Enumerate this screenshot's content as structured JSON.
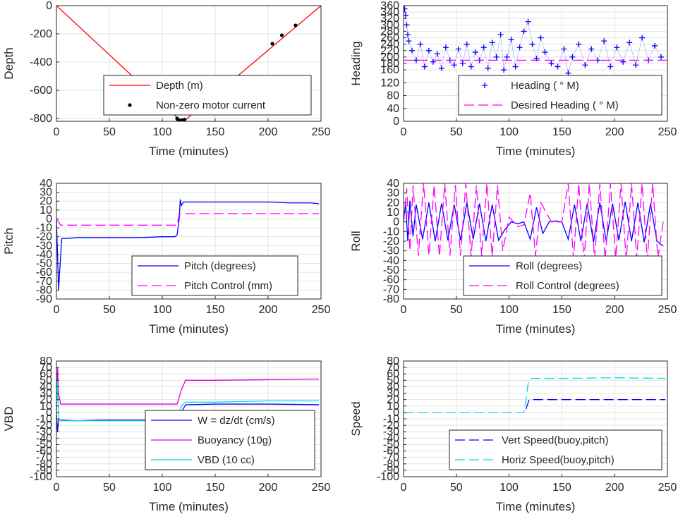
{
  "chart_data": [
    {
      "id": "depth",
      "type": "line",
      "xlabel": "Time (minutes)",
      "ylabel": "Depth",
      "xlim": [
        0,
        250
      ],
      "ylim": [
        -820,
        0
      ],
      "xticks": [
        0,
        50,
        100,
        150,
        200,
        250
      ],
      "yticks": [
        0,
        -200,
        -400,
        -600,
        -800
      ],
      "grid": true,
      "legend": {
        "position": "bottom-center"
      },
      "series": [
        {
          "name": "Depth (m)",
          "color": "#ff0000",
          "style": "solid",
          "x": [
            0,
            117,
            122,
            250
          ],
          "y": [
            0,
            -815,
            -810,
            0
          ]
        },
        {
          "name": "Non-zero motor current",
          "color": "#000000",
          "style": "dots",
          "x": [
            114,
            115,
            116,
            117,
            118,
            119,
            120,
            121,
            204,
            213,
            226
          ],
          "y": [
            -800,
            -810,
            -815,
            -815,
            -815,
            -812,
            -812,
            -808,
            -270,
            -210,
            -140
          ]
        }
      ]
    },
    {
      "id": "heading",
      "type": "scatter",
      "xlabel": "Time (minutes)",
      "ylabel": "Heading",
      "xlim": [
        0,
        250
      ],
      "ylim": [
        0,
        360
      ],
      "xticks": [
        0,
        50,
        100,
        150,
        200,
        250
      ],
      "yticks": [
        0,
        40,
        80,
        120,
        160,
        180,
        200,
        220,
        240,
        260,
        280,
        300,
        320,
        340,
        360
      ],
      "grid": true,
      "legend": {
        "position": "bottom-right"
      },
      "series": [
        {
          "name": "Heading (  ° M)",
          "color": "#0000ff",
          "style": "plus",
          "x": [
            1,
            2,
            3,
            4,
            5,
            8,
            12,
            16,
            20,
            24,
            28,
            32,
            36,
            40,
            44,
            48,
            52,
            56,
            60,
            64,
            68,
            72,
            76,
            80,
            84,
            88,
            92,
            95,
            98,
            102,
            106,
            110,
            114,
            118,
            122,
            126,
            130,
            134,
            140,
            146,
            152,
            156,
            160,
            166,
            172,
            178,
            184,
            190,
            196,
            202,
            208,
            214,
            220,
            226,
            232,
            238,
            244
          ],
          "y": [
            350,
            330,
            300,
            270,
            250,
            220,
            190,
            240,
            170,
            220,
            185,
            210,
            165,
            230,
            190,
            175,
            225,
            180,
            240,
            170,
            215,
            190,
            230,
            165,
            245,
            200,
            270,
            160,
            200,
            255,
            170,
            230,
            280,
            310,
            240,
            195,
            260,
            215,
            180,
            170,
            225,
            150,
            200,
            240,
            175,
            225,
            190,
            250,
            170,
            230,
            185,
            245,
            175,
            260,
            190,
            235,
            200
          ]
        },
        {
          "name": "Desired Heading (    ° M)",
          "color": "#ff00ff",
          "style": "dashed",
          "x": [
            0,
            250
          ],
          "y": [
            190,
            190
          ]
        }
      ]
    },
    {
      "id": "pitch",
      "type": "line",
      "xlabel": "Time (minutes)",
      "ylabel": "Pitch",
      "xlim": [
        0,
        250
      ],
      "ylim": [
        -90,
        40
      ],
      "xticks": [
        0,
        50,
        100,
        150,
        200,
        250
      ],
      "yticks": [
        40,
        30,
        20,
        10,
        0,
        -10,
        -20,
        -30,
        -40,
        -50,
        -60,
        -70,
        -80,
        -90
      ],
      "grid": true,
      "legend": {
        "position": "bottom-right"
      },
      "series": [
        {
          "name": "Pitch (degrees)",
          "color": "#0000ff",
          "style": "solid",
          "x": [
            0,
            1,
            2,
            3,
            5,
            10,
            20,
            40,
            60,
            80,
            100,
            112,
            114,
            116,
            117,
            118,
            120,
            140,
            160,
            180,
            200,
            220,
            240,
            248
          ],
          "y": [
            0,
            -40,
            -80,
            -60,
            -22,
            -22,
            -21,
            -21,
            -21,
            -21,
            -20,
            -20,
            -18,
            0,
            22,
            15,
            19,
            19,
            19,
            19,
            19,
            18,
            18,
            17
          ]
        },
        {
          "name": "Pitch Control (mm)",
          "color": "#ff00ff",
          "style": "dashed",
          "x": [
            0,
            4,
            10,
            114,
            116,
            120,
            248
          ],
          "y": [
            0,
            -7,
            -7,
            -7,
            5,
            6,
            6
          ]
        }
      ]
    },
    {
      "id": "roll",
      "type": "line",
      "xlabel": "Time (minutes)",
      "ylabel": "Roll",
      "xlim": [
        0,
        250
      ],
      "ylim": [
        -80,
        40
      ],
      "xticks": [
        0,
        50,
        100,
        150,
        200,
        250
      ],
      "yticks": [
        40,
        30,
        20,
        10,
        0,
        -10,
        -20,
        -30,
        -40,
        -50,
        -60,
        -70,
        -80
      ],
      "grid": true,
      "legend": {
        "position": "bottom-right"
      },
      "series": [
        {
          "name": "Roll (degrees)",
          "color": "#0000ff",
          "style": "solid",
          "x": [
            0,
            2,
            4,
            6,
            9,
            12,
            18,
            24,
            30,
            36,
            42,
            48,
            54,
            60,
            66,
            72,
            78,
            84,
            90,
            96,
            102,
            108,
            114,
            120,
            126,
            132,
            138,
            144,
            150,
            156,
            162,
            168,
            174,
            180,
            186,
            192,
            198,
            204,
            210,
            216,
            222,
            228,
            234,
            240,
            246
          ],
          "y": [
            0,
            20,
            -20,
            22,
            -15,
            18,
            -18,
            20,
            -20,
            19,
            -19,
            18,
            -19,
            20,
            -18,
            19,
            -20,
            18,
            -19,
            -8,
            0,
            -2,
            0,
            -18,
            15,
            -12,
            0,
            1,
            0,
            -18,
            18,
            -20,
            19,
            -21,
            20,
            -20,
            19,
            -19,
            21,
            -20,
            20,
            -21,
            19,
            -20,
            -25
          ]
        },
        {
          "name": "Roll Control (degrees)",
          "color": "#ff00ff",
          "style": "dashed",
          "x": [
            0,
            3,
            6,
            9,
            14,
            19,
            24,
            29,
            34,
            39,
            44,
            49,
            54,
            59,
            64,
            69,
            74,
            79,
            84,
            89,
            94,
            100,
            108,
            114,
            120,
            125,
            130,
            140,
            150,
            156,
            161,
            166,
            171,
            176,
            181,
            186,
            191,
            196,
            201,
            206,
            211,
            216,
            221,
            226,
            231,
            236,
            241,
            246
          ],
          "y": [
            0,
            35,
            -30,
            38,
            -35,
            40,
            -35,
            38,
            -36,
            40,
            -35,
            38,
            -35,
            40,
            -36,
            38,
            -35,
            40,
            -36,
            38,
            -30,
            5,
            -5,
            -3,
            30,
            -35,
            20,
            0,
            0,
            40,
            -38,
            40,
            -40,
            40,
            -38,
            40,
            -40,
            40,
            -38,
            40,
            -40,
            40,
            -38,
            40,
            -40,
            40,
            -38,
            0
          ]
        }
      ]
    },
    {
      "id": "vbd",
      "type": "line",
      "xlabel": "Time (minutes)",
      "ylabel": "VBD",
      "xlim": [
        0,
        250
      ],
      "ylim": [
        -100,
        80
      ],
      "xticks": [
        0,
        50,
        100,
        150,
        200,
        250
      ],
      "yticks": [
        80,
        70,
        60,
        50,
        40,
        30,
        20,
        10,
        0,
        -10,
        -20,
        -30,
        -40,
        -50,
        -60,
        -70,
        -80,
        -90,
        -100
      ],
      "grid": true,
      "legend": {
        "position": "bottom-right"
      },
      "series": [
        {
          "name": "W = dz/dt (cm/s)",
          "color": "#0000ff",
          "style": "solid",
          "x": [
            0,
            1,
            2,
            3,
            5,
            20,
            40,
            60,
            80,
            100,
            114,
            118,
            122,
            150,
            200,
            248
          ],
          "y": [
            0,
            -30,
            -10,
            -12,
            -12,
            -13,
            -12,
            -12,
            -12,
            -11,
            -12,
            0,
            12,
            13,
            13,
            12
          ]
        },
        {
          "name": "Buoyancy (10g)",
          "color": "#dd00dd",
          "style": "solid",
          "x": [
            0,
            1,
            2,
            4,
            114,
            118,
            122,
            150,
            200,
            248
          ],
          "y": [
            0,
            70,
            30,
            13,
            13,
            35,
            50,
            50,
            51,
            52
          ]
        },
        {
          "name": "VBD (10 cc)",
          "color": "#00dddd",
          "style": "solid",
          "x": [
            0,
            1,
            2,
            4,
            114,
            118,
            122,
            150,
            200,
            248
          ],
          "y": [
            0,
            50,
            -10,
            -13,
            -13,
            10,
            16,
            16,
            18,
            18
          ]
        }
      ]
    },
    {
      "id": "speed",
      "type": "line",
      "xlabel": "Time (minutes)",
      "ylabel": "Speed",
      "xlim": [
        0,
        250
      ],
      "ylim": [
        -100,
        80
      ],
      "xticks": [
        0,
        50,
        100,
        150,
        200,
        250
      ],
      "yticks": [
        80,
        70,
        60,
        50,
        40,
        30,
        20,
        10,
        0,
        -10,
        -20,
        -30,
        -40,
        -50,
        -60,
        -70,
        -80,
        -90,
        -100
      ],
      "grid": true,
      "legend": {
        "position": "bottom-right"
      },
      "series": [
        {
          "name": "Vert Speed(buoy,pitch)",
          "color": "#0000ff",
          "style": "dashed",
          "x": [
            116,
            118,
            119,
            122,
            150,
            200,
            248
          ],
          "y": [
            5,
            15,
            20,
            20,
            20,
            20,
            20
          ]
        },
        {
          "name": "Horiz Speed(buoy,pitch)",
          "color": "#00dddd",
          "style": "dashed",
          "x": [
            0,
            114,
            116,
            118,
            120,
            150,
            200,
            248
          ],
          "y": [
            0,
            0,
            20,
            45,
            53,
            53,
            54,
            53
          ]
        }
      ]
    }
  ]
}
